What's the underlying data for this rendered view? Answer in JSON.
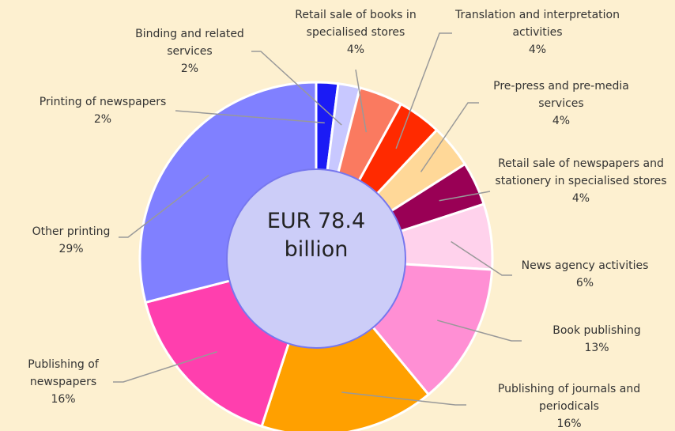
{
  "chart_data": {
    "type": "pie",
    "center_label": "EUR 78.4 billion",
    "categories": [
      "Printing of newspapers",
      "Binding and related services",
      "Retail sale of books in specialised stores",
      "Translation and interpretation activities",
      "Pre-press and pre-media services",
      "Retail sale of newspapers and stationery in specialised stores",
      "News agency activities",
      "Book publishing",
      "Publishing of journals and periodicals",
      "Publishing of newspapers",
      "Other printing"
    ],
    "values": [
      2,
      2,
      4,
      4,
      4,
      4,
      6,
      13,
      16,
      16,
      29
    ],
    "value_labels": [
      "2%",
      "2%",
      "4%",
      "4%",
      "4%",
      "4%",
      "6%",
      "13%",
      "16%",
      "16%",
      "29%"
    ],
    "colors": [
      "#1b1bf5",
      "#c8c8ff",
      "#fa7a60",
      "#ff2a00",
      "#ffd898",
      "#990055",
      "#ffd2ec",
      "#ff8fd4",
      "#ffa000",
      "#ff3fae",
      "#8080ff"
    ]
  }
}
